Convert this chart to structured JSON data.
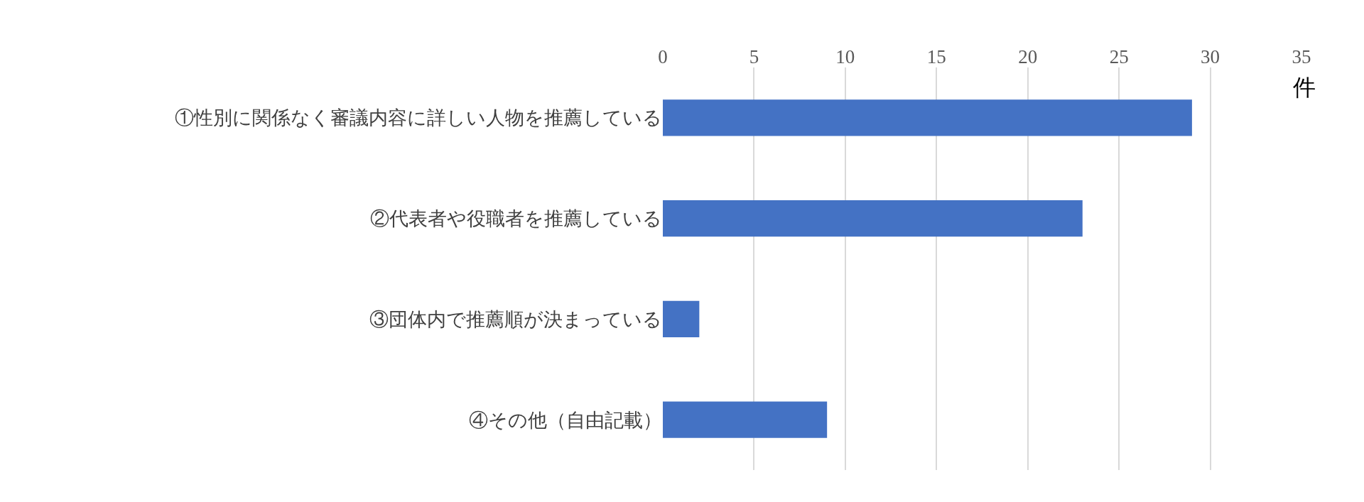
{
  "chart_data": {
    "type": "bar",
    "orientation": "horizontal",
    "xlabel": "件",
    "categories": [
      "①性別に関係なく審議内容に詳しい人物を推薦している",
      "②代表者や役職者を推薦している",
      "③団体内で推薦順が決まっている",
      "④その他（自由記載）"
    ],
    "values": [
      29,
      23,
      2,
      9
    ],
    "color": "#4472c4",
    "xlim": [
      0,
      35
    ],
    "xticks": [
      0,
      5,
      10,
      15,
      20,
      25,
      30,
      35
    ],
    "grid": "x",
    "legend": false
  }
}
